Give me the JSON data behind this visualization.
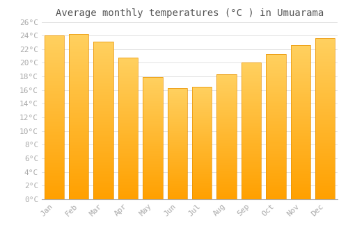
{
  "title": "Average monthly temperatures (°C ) in Umuarama",
  "months": [
    "Jan",
    "Feb",
    "Mar",
    "Apr",
    "May",
    "Jun",
    "Jul",
    "Aug",
    "Sep",
    "Oct",
    "Nov",
    "Dec"
  ],
  "values": [
    24.0,
    24.2,
    23.1,
    20.8,
    17.9,
    16.3,
    16.5,
    18.3,
    20.0,
    21.3,
    22.6,
    23.6
  ],
  "bar_color_top": "#FFD060",
  "bar_color_bottom": "#FFA000",
  "bar_edge_color": "#E89000",
  "ylim": [
    0,
    26
  ],
  "ytick_step": 2,
  "background_color": "#ffffff",
  "grid_color": "#dddddd",
  "title_fontsize": 10,
  "tick_fontsize": 8,
  "font_family": "monospace",
  "tick_color": "#aaaaaa",
  "title_color": "#555555"
}
